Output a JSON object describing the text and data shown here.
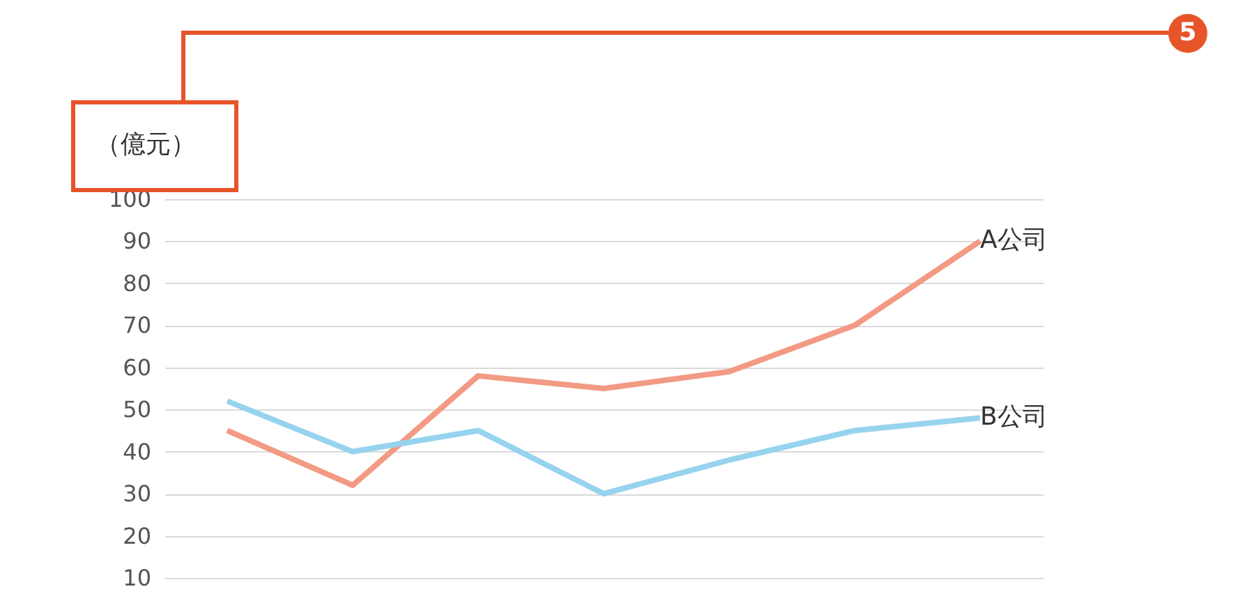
{
  "chart_data": {
    "type": "line",
    "ylabel": "（億元）",
    "categories": [
      null,
      null,
      null,
      null,
      null,
      null,
      null
    ],
    "series": [
      {
        "name": "A公司",
        "color": "#f29a83",
        "values": [
          45,
          32,
          58,
          55,
          59,
          70,
          90
        ]
      },
      {
        "name": "B公司",
        "color": "#96d3ee",
        "values": [
          52,
          40,
          45,
          30,
          38,
          45,
          48
        ]
      }
    ],
    "ylim": [
      10,
      100
    ],
    "yticks": [
      10,
      20,
      30,
      40,
      50,
      60,
      70,
      80,
      90,
      100
    ],
    "grid": "y",
    "tick_labels": "y",
    "marker": "none",
    "line_style": "solid",
    "annotations": [
      "5"
    ]
  }
}
